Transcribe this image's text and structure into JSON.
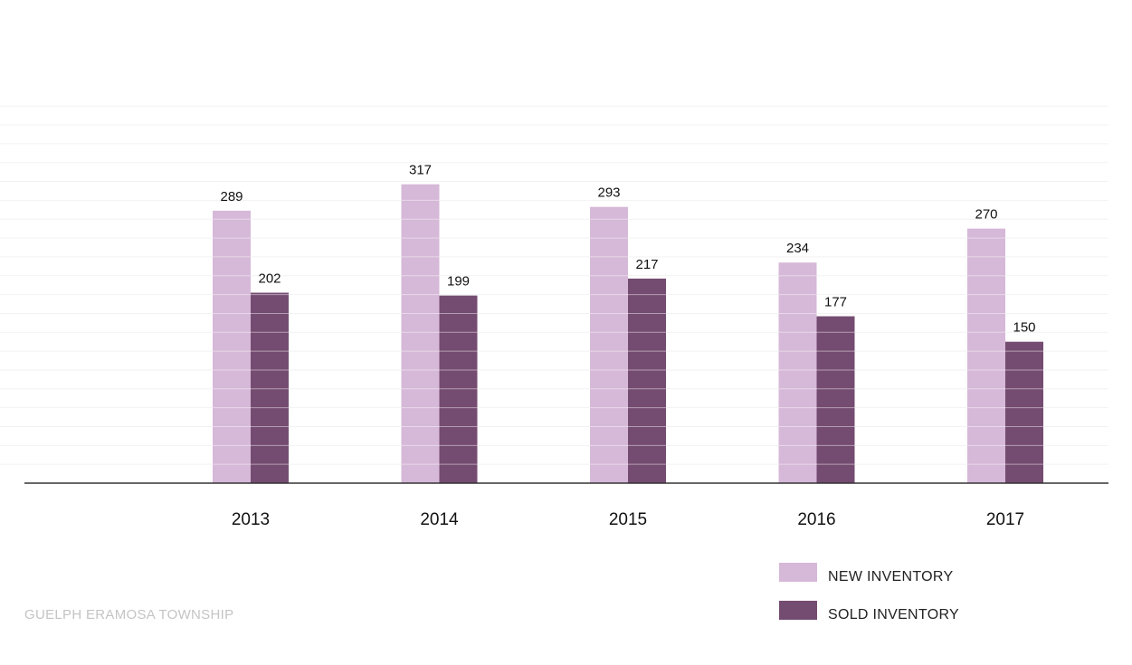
{
  "chart_data": {
    "type": "bar",
    "categories": [
      "2013",
      "2014",
      "2015",
      "2016",
      "2017"
    ],
    "series": [
      {
        "name": "NEW INVENTORY",
        "values": [
          289,
          317,
          293,
          234,
          270
        ]
      },
      {
        "name": "SOLD INVENTORY",
        "values": [
          202,
          199,
          217,
          177,
          150
        ]
      }
    ],
    "title": "",
    "xlabel": "",
    "ylabel": "",
    "ylim": [
      0,
      400
    ],
    "grid": true,
    "legend_position": "bottom-right",
    "colors": {
      "new_inventory": "#d6b8d8",
      "sold_inventory": "#754c71",
      "axis": "#333333",
      "grid": "#f2f2f2"
    },
    "footer_label": "GUELPH ERAMOSA TOWNSHIP"
  }
}
